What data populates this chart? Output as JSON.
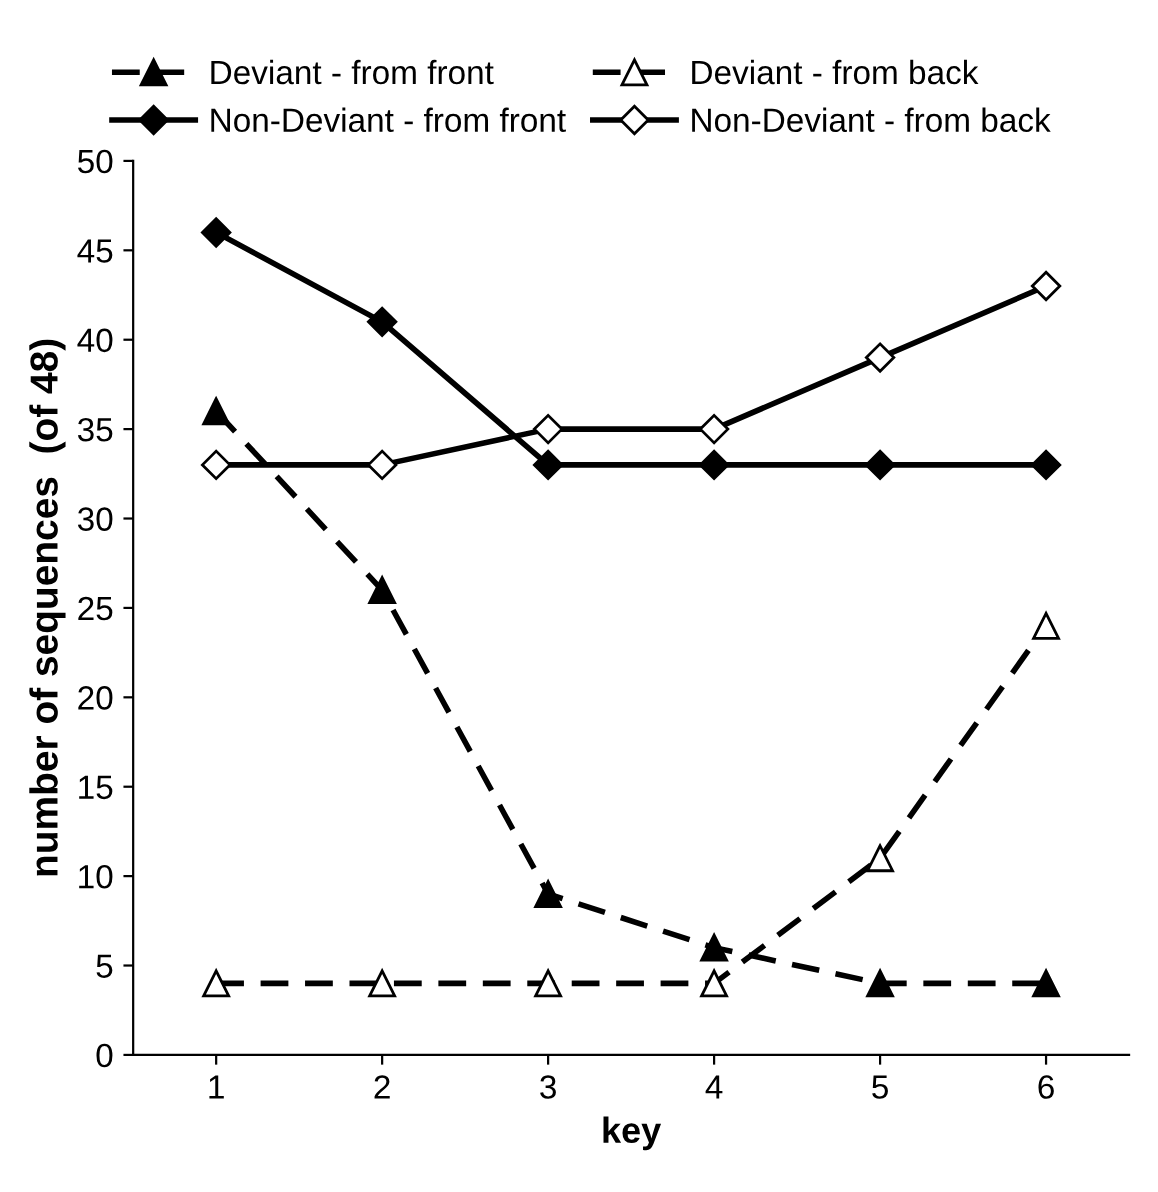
{
  "chart_data": {
    "type": "line",
    "xlabel": "key",
    "ylabel": "number of sequences  (of 48)",
    "categories": [
      "1",
      "2",
      "3",
      "4",
      "5",
      "6"
    ],
    "ylim": [
      0,
      50
    ],
    "yticks": [
      0,
      5,
      10,
      15,
      20,
      25,
      30,
      35,
      40,
      45,
      50
    ],
    "legend": "top",
    "grid": false,
    "series": [
      {
        "name": "Deviant - from front",
        "color": "#000000",
        "marker": "triangle",
        "line_style": "dashed",
        "values": [
          36,
          26,
          9,
          6,
          4,
          4
        ]
      },
      {
        "name": "Deviant - from back",
        "color": "#000000",
        "marker": "triangle",
        "colors": [
          "#ffffff",
          "#ffffff",
          "#ffffff",
          "#ffffff",
          "#ffffff",
          "#ffffff"
        ],
        "line_style": "dashed",
        "values": [
          4,
          4,
          4,
          4,
          11,
          24
        ]
      },
      {
        "name": "Non-Deviant - from front",
        "color": "#000000",
        "marker": "diamond",
        "line_style": "solid",
        "values": [
          46,
          41,
          33,
          33,
          33,
          33
        ]
      },
      {
        "name": "Non-Deviant - from back",
        "color": "#000000",
        "marker": "diamond",
        "colors": [
          "#ffffff",
          "#ffffff",
          "#ffffff",
          "#ffffff",
          "#ffffff",
          "#ffffff"
        ],
        "line_style": "solid",
        "values": [
          33,
          33,
          35,
          35,
          39,
          43
        ]
      }
    ]
  }
}
